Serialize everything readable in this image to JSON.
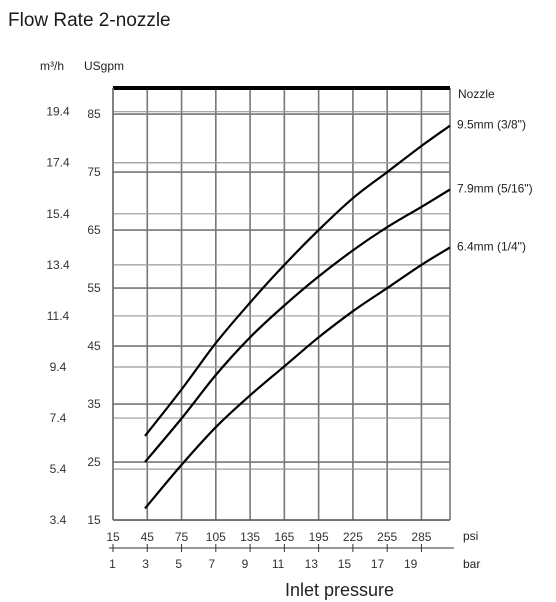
{
  "title": "Flow Rate 2-nozzle",
  "chart_data": {
    "type": "line",
    "title": "Flow Rate 2-nozzle",
    "xlabel": "Inlet pressure",
    "x_units": {
      "primary": "psi",
      "secondary": "bar"
    },
    "y_units": {
      "primary": "USgpm",
      "secondary": "m³/h"
    },
    "x_ticks_psi": [
      "15",
      "45",
      "75",
      "105",
      "135",
      "165",
      "195",
      "225",
      "255",
      "285"
    ],
    "x_ticks_bar": [
      "1",
      "3",
      "5",
      "7",
      "9",
      "11",
      "13",
      "15",
      "17",
      "19"
    ],
    "y_ticks_usgpm": [
      "15",
      "25",
      "35",
      "45",
      "55",
      "65",
      "75",
      "85"
    ],
    "y_ticks_m3h": [
      "3.4",
      "5.4",
      "7.4",
      "9.4",
      "11.4",
      "13.4",
      "15.4",
      "17.4",
      "19.4"
    ],
    "xlim": [
      15,
      310
    ],
    "ylim": [
      15,
      89.5
    ],
    "legend_title": "Nozzle",
    "grid": true,
    "series": [
      {
        "name": "9.5mm (3/8\")",
        "x": [
          43,
          75,
          105,
          135,
          165,
          195,
          225,
          255,
          285,
          310
        ],
        "y": [
          29.5,
          37.5,
          45.5,
          52.5,
          59,
          65,
          70.5,
          75,
          79.5,
          83
        ]
      },
      {
        "name": "7.9mm (5/16\")",
        "x": [
          43,
          75,
          105,
          135,
          165,
          195,
          225,
          255,
          285,
          310
        ],
        "y": [
          25,
          32.5,
          40,
          46.5,
          52,
          57,
          61.5,
          65.5,
          69,
          72
        ]
      },
      {
        "name": "6.4mm (1/4\")",
        "x": [
          43,
          75,
          105,
          135,
          165,
          195,
          225,
          255,
          285,
          310
        ],
        "y": [
          17,
          24.5,
          31,
          36.5,
          41.5,
          46.5,
          51,
          55,
          59,
          62
        ]
      }
    ]
  }
}
